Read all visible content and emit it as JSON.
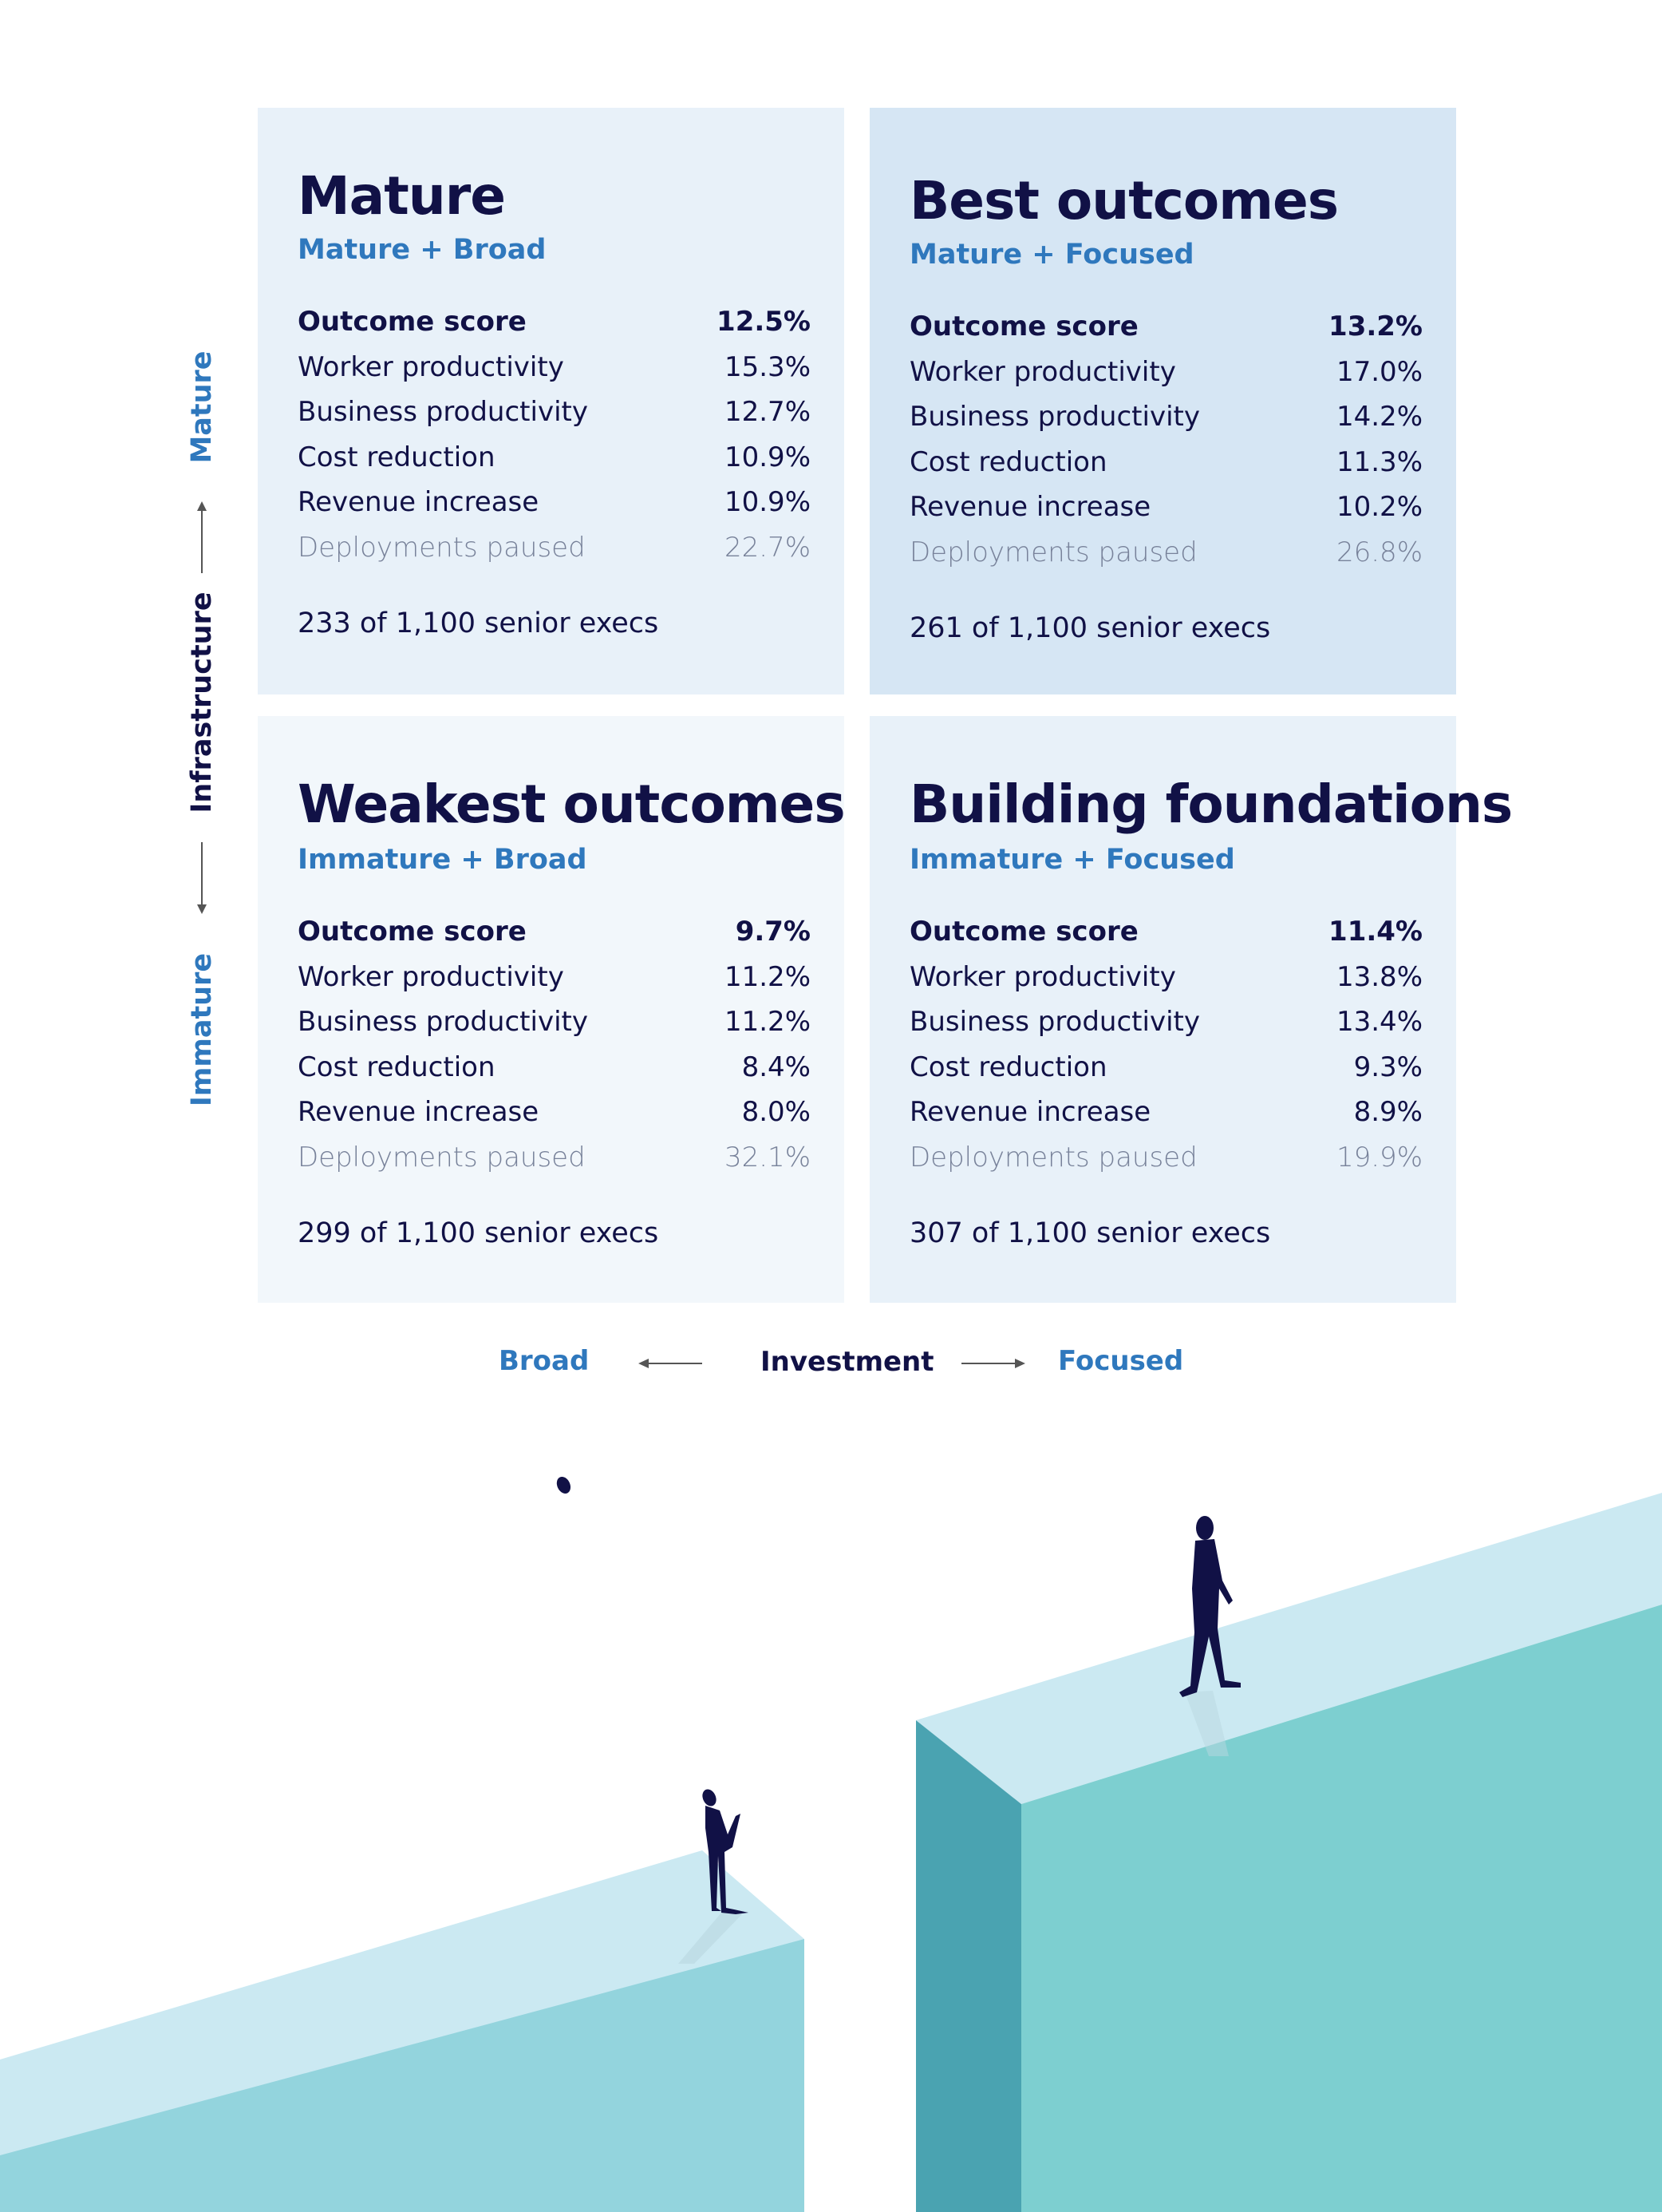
{
  "quadrants": [
    {
      "title": "Mature",
      "subtitle": "Mature + Broad",
      "rows": [
        {
          "label": "Outcome score",
          "value": "12.5%"
        },
        {
          "label": "Worker productivity",
          "value": "15.3%"
        },
        {
          "label": "Business productivity",
          "value": "12.7%"
        },
        {
          "label": "Cost reduction",
          "value": "10.9%"
        },
        {
          "label": "Revenue increase",
          "value": "10.9%"
        },
        {
          "label": "Deployments paused",
          "value": "22.7%"
        }
      ],
      "execs": "233 of 1,100 senior execs"
    },
    {
      "title": "Best outcomes",
      "subtitle": "Mature + Focused",
      "rows": [
        {
          "label": "Outcome score",
          "value": "13.2%"
        },
        {
          "label": "Worker productivity",
          "value": "17.0%"
        },
        {
          "label": "Business productivity",
          "value": "14.2%"
        },
        {
          "label": "Cost reduction",
          "value": "11.3%"
        },
        {
          "label": "Revenue increase",
          "value": "10.2%"
        },
        {
          "label": "Deployments paused",
          "value": "26.8%"
        }
      ],
      "execs": "261 of 1,100 senior execs"
    },
    {
      "title": "Weakest outcomes",
      "subtitle": "Immature + Broad",
      "rows": [
        {
          "label": "Outcome score",
          "value": "9.7%"
        },
        {
          "label": "Worker productivity",
          "value": "11.2%"
        },
        {
          "label": "Business productivity",
          "value": "11.2%"
        },
        {
          "label": "Cost reduction",
          "value": "8.4%"
        },
        {
          "label": "Revenue increase",
          "value": "8.0%"
        },
        {
          "label": "Deployments paused",
          "value": "32.1%"
        }
      ],
      "execs": "299 of 1,100 senior execs"
    },
    {
      "title": "Building foundations",
      "subtitle": "Immature + Focused",
      "rows": [
        {
          "label": "Outcome score",
          "value": "11.4%"
        },
        {
          "label": "Worker productivity",
          "value": "13.8%"
        },
        {
          "label": "Business productivity",
          "value": "13.4%"
        },
        {
          "label": "Cost reduction",
          "value": "9.3%"
        },
        {
          "label": "Revenue increase",
          "value": "8.9%"
        },
        {
          "label": "Deployments paused",
          "value": "19.9%"
        }
      ],
      "execs": "307 of 1,100 senior execs"
    }
  ],
  "axes": {
    "vertical": {
      "top": "Mature",
      "middle": "Infrastructure",
      "bottom": "Immature"
    },
    "horizontal": {
      "left": "Broad",
      "middle": "Investment",
      "right": "Focused"
    }
  },
  "colors": {
    "navy": "#111146",
    "accent_blue": "#2f78bd",
    "muted": "#78829a"
  }
}
